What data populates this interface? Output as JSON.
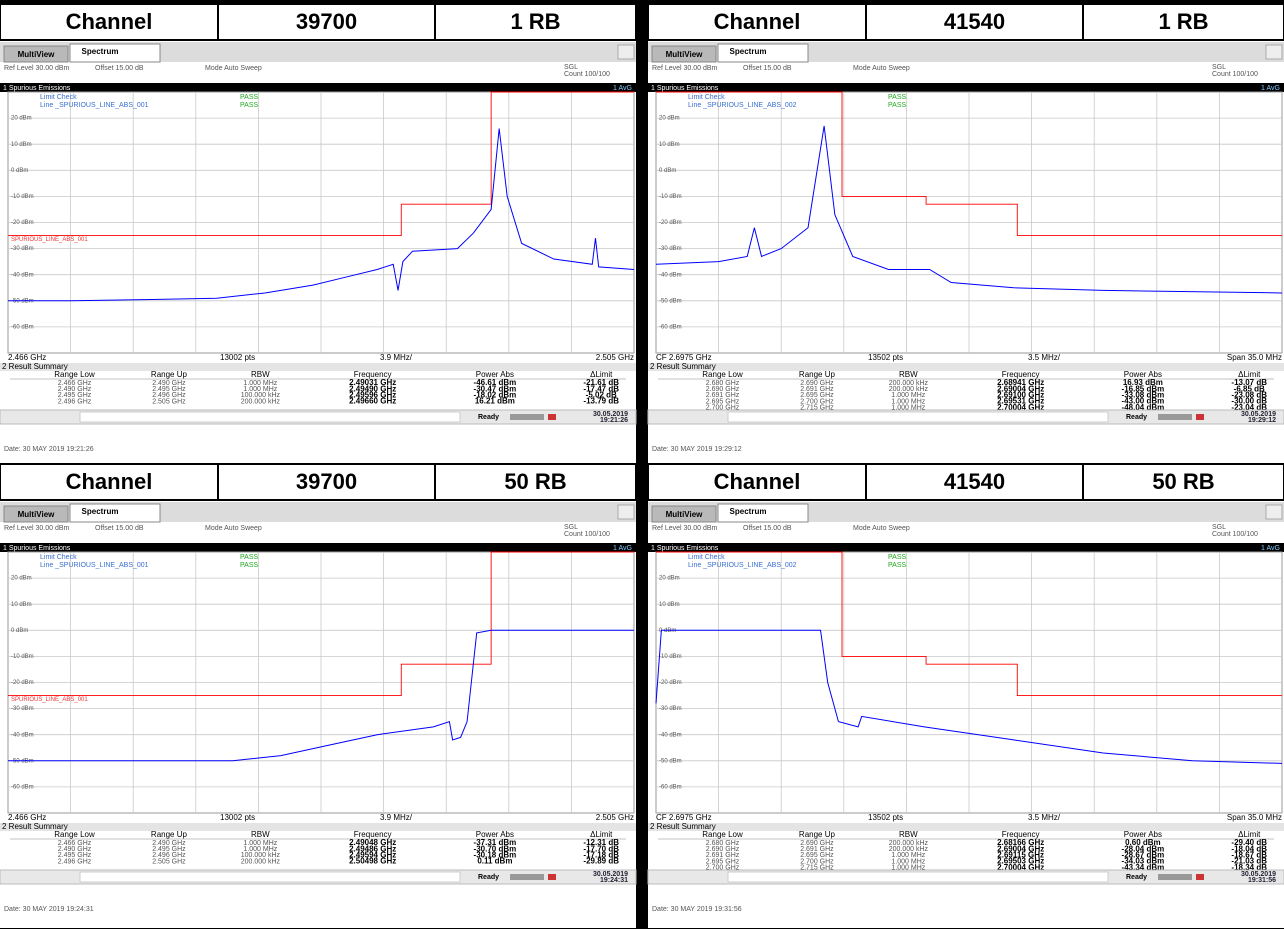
{
  "panels": [
    {
      "header": {
        "label": "Channel",
        "channel": "39700",
        "rb": "1 RB"
      },
      "tabs": [
        "MultiView",
        "Spectrum"
      ],
      "ref_level": "Ref Level 30.00 dBm",
      "offset": "Offset 15.00 dB",
      "mode": "Mode Auto Sweep",
      "sgl": "SGL",
      "count": "Count 100/100",
      "window_title": "1 Spurious Emissions",
      "trace_label": "1 AvG",
      "limit_check": "Limit Check",
      "limit_result": "PASS",
      "line_name": "Line _SPURIOUS_LINE_ABS_001",
      "line_result": "PASS",
      "limit_line_label": "SPURIOUS_LINE_ABS_001",
      "plot": {
        "xlim": [
          2.466,
          2.505
        ],
        "ylim": [
          -70,
          30
        ],
        "yticks": [
          {
            "value": 20,
            "label": "20 dBm"
          },
          {
            "value": 10,
            "label": "10 dBm"
          },
          {
            "value": 0,
            "label": "0 dBm"
          },
          {
            "value": -10,
            "label": "-10 dBm"
          },
          {
            "value": -20,
            "label": "-20 dBm"
          },
          {
            "value": -30,
            "label": "-30 dBm"
          },
          {
            "value": -40,
            "label": "-40 dBm"
          },
          {
            "value": -50,
            "label": "-50 dBm"
          },
          {
            "value": -60,
            "label": "-60 dBm"
          }
        ],
        "trace": {
          "color": "#0000ff",
          "x": [
            2.466,
            2.47,
            2.475,
            2.479,
            2.482,
            2.485,
            2.487,
            2.489,
            2.49,
            2.4903,
            2.4906,
            2.4912,
            2.494,
            2.495,
            2.4961,
            2.4966,
            2.4971,
            2.498,
            2.5,
            2.5024,
            2.5026,
            2.5028,
            2.505
          ],
          "values": [
            -50,
            -50,
            -49.5,
            -49,
            -47,
            -44,
            -41,
            -38,
            -36,
            -46,
            -35,
            -31,
            -30,
            -24,
            -15,
            16,
            -10,
            -28,
            -34,
            -36,
            -26,
            -37,
            -38
          ]
        },
        "limit": {
          "color": "#ff0000",
          "x": [
            2.466,
            2.4905,
            2.4905,
            2.4961,
            2.4961,
            2.505
          ],
          "values": [
            -25,
            -25,
            -13,
            -13,
            30,
            30
          ]
        }
      },
      "x_left": "2.466 GHz",
      "points": "13002 pts",
      "per_div": "3.9 MHz/",
      "x_right": "2.505 GHz",
      "summary_title": "2 Result Summary",
      "columns": [
        "Range Low",
        "Range Up",
        "RBW",
        "Frequency",
        "Power Abs",
        "ΔLimit"
      ],
      "rows": [
        [
          "2.466 GHz",
          "2.490 GHz",
          "1.000 MHz",
          "2.49031 GHz",
          "-46.61 dBm",
          "-21.61 dB"
        ],
        [
          "2.490 GHz",
          "2.495 GHz",
          "1.000 MHz",
          "2.49490 GHz",
          "-30.47 dBm",
          "-17.47 dB"
        ],
        [
          "2.495 GHz",
          "2.496 GHz",
          "100.000 kHz",
          "2.49596 GHz",
          "-18.02 dBm",
          "-5.02 dB"
        ],
        [
          "2.496 GHz",
          "2.505 GHz",
          "200.000 kHz",
          "2.49660 GHz",
          "16.21 dBm",
          "-13.79 dB"
        ]
      ],
      "status": "Ready",
      "timestamp": [
        "30.05.2019",
        "19:21:26"
      ],
      "date": "Date: 30 MAY 2019 19:21:26"
    },
    {
      "header": {
        "label": "Channel",
        "channel": "41540",
        "rb": "1 RB"
      },
      "tabs": [
        "MultiView",
        "Spectrum"
      ],
      "ref_level": "Ref Level 30.00 dBm",
      "offset": "Offset 15.00 dB",
      "mode": "Mode Auto Sweep",
      "sgl": "SGL",
      "count": "Count 100/100",
      "window_title": "1 Spurious Emissions",
      "trace_label": "1 AvG",
      "limit_check": "Limit Check",
      "limit_result": "PASS",
      "line_name": "Line _SPURIOUS_LINE_ABS_002",
      "line_result": "PASS",
      "plot": {
        "xlim": [
          2.68,
          2.715
        ],
        "ylim": [
          -70,
          30
        ],
        "yticks": [
          {
            "value": 20,
            "label": "20 dBm"
          },
          {
            "value": 10,
            "label": "10 dBm"
          },
          {
            "value": 0,
            "label": "0 dBm"
          },
          {
            "value": -10,
            "label": "-10 dBm"
          },
          {
            "value": -20,
            "label": "-20 dBm"
          },
          {
            "value": -30,
            "label": "-30 dBm"
          },
          {
            "value": -40,
            "label": "-40 dBm"
          },
          {
            "value": -50,
            "label": "-50 dBm"
          },
          {
            "value": -60,
            "label": "-60 dBm"
          }
        ],
        "trace": {
          "color": "#0000ff",
          "x": [
            2.68,
            2.6835,
            2.6851,
            2.6855,
            2.6859,
            2.687,
            2.6885,
            2.6894,
            2.69,
            2.6905,
            2.691,
            2.693,
            2.6953,
            2.6965,
            2.7,
            2.705,
            2.715
          ],
          "values": [
            -36,
            -35,
            -33,
            -22,
            -33,
            -30,
            -22,
            17,
            -17,
            -25,
            -33,
            -38,
            -38,
            -43,
            -45,
            -46,
            -47
          ]
        },
        "limit": {
          "color": "#ff0000",
          "x": [
            2.68,
            2.6904,
            2.6904,
            2.6951,
            2.6951,
            2.7002,
            2.7002,
            2.715
          ],
          "values": [
            30,
            30,
            -10,
            -10,
            -13,
            -13,
            -25,
            -25
          ]
        }
      },
      "x_left": "CF 2.6975 GHz",
      "points": "13502 pts",
      "per_div": "3.5 MHz/",
      "x_right": "Span 35.0 MHz",
      "summary_title": "2 Result Summary",
      "columns": [
        "Range Low",
        "Range Up",
        "RBW",
        "Frequency",
        "Power Abs",
        "ΔLimit"
      ],
      "rows": [
        [
          "2.680 GHz",
          "2.690 GHz",
          "200.000 kHz",
          "2.68941 GHz",
          "16.93 dBm",
          "-13.07 dB"
        ],
        [
          "2.690 GHz",
          "2.691 GHz",
          "200.000 kHz",
          "2.69004 GHz",
          "-16.85 dBm",
          "-6.85 dB"
        ],
        [
          "2.691 GHz",
          "2.695 GHz",
          "1.000 MHz",
          "2.69100 GHz",
          "-33.08 dBm",
          "-23.08 dB"
        ],
        [
          "2.695 GHz",
          "2.700 GHz",
          "1.000 MHz",
          "2.69531 GHz",
          "-43.00 dBm",
          "-30.00 dB"
        ],
        [
          "2.700 GHz",
          "2.715 GHz",
          "1.000 MHz",
          "2.70004 GHz",
          "-48.04 dBm",
          "-23.04 dB"
        ]
      ],
      "status": "Ready",
      "timestamp": [
        "30.05.2019",
        "19:29:12"
      ],
      "date": "Date: 30 MAY 2019 19:29:12"
    },
    {
      "header": {
        "label": "Channel",
        "channel": "39700",
        "rb": "50 RB"
      },
      "tabs": [
        "MultiView",
        "Spectrum"
      ],
      "ref_level": "Ref Level 30.00 dBm",
      "offset": "Offset 15.00 dB",
      "mode": "Mode Auto Sweep",
      "sgl": "SGL",
      "count": "Count 100/100",
      "window_title": "1 Spurious Emissions",
      "trace_label": "1 AvG",
      "limit_check": "Limit Check",
      "limit_result": "PASS",
      "line_name": "Line _SPURIOUS_LINE_ABS_001",
      "line_result": "PASS",
      "limit_line_label": "SPURIOUS_LINE_ABS_001",
      "plot": {
        "xlim": [
          2.466,
          2.505
        ],
        "ylim": [
          -70,
          30
        ],
        "yticks": [
          {
            "value": 20,
            "label": "20 dBm"
          },
          {
            "value": 10,
            "label": "10 dBm"
          },
          {
            "value": 0,
            "label": "0 dBm"
          },
          {
            "value": -10,
            "label": "-10 dBm"
          },
          {
            "value": -20,
            "label": "-20 dBm"
          },
          {
            "value": -30,
            "label": "-30 dBm"
          },
          {
            "value": -40,
            "label": "-40 dBm"
          },
          {
            "value": -50,
            "label": "-50 dBm"
          },
          {
            "value": -60,
            "label": "-60 dBm"
          }
        ],
        "trace": {
          "color": "#0000ff",
          "x": [
            2.466,
            2.475,
            2.48,
            2.483,
            2.486,
            2.489,
            2.4925,
            2.4935,
            2.4937,
            2.4942,
            2.4946,
            2.4952,
            2.4961,
            2.5,
            2.505
          ],
          "values": [
            -50,
            -50,
            -50,
            -48,
            -44,
            -40,
            -37,
            -35,
            -42,
            -41,
            -35,
            -1,
            0,
            0,
            0
          ]
        },
        "limit": {
          "color": "#ff0000",
          "x": [
            2.466,
            2.4905,
            2.4905,
            2.4961,
            2.4961,
            2.505
          ],
          "values": [
            -25,
            -25,
            -13,
            -13,
            30,
            30
          ]
        }
      },
      "x_left": "2.466 GHz",
      "points": "13002 pts",
      "per_div": "3.9 MHz/",
      "x_right": "2.505 GHz",
      "summary_title": "2 Result Summary",
      "columns": [
        "Range Low",
        "Range Up",
        "RBW",
        "Frequency",
        "Power Abs",
        "ΔLimit"
      ],
      "rows": [
        [
          "2.466 GHz",
          "2.490 GHz",
          "1.000 MHz",
          "2.49048 GHz",
          "-37.31 dBm",
          "-12.31 dB"
        ],
        [
          "2.490 GHz",
          "2.495 GHz",
          "1.000 MHz",
          "2.49486 GHz",
          "-30.70 dBm",
          "-17.70 dB"
        ],
        [
          "2.495 GHz",
          "2.496 GHz",
          "100.000 kHz",
          "2.49594 GHz",
          "-30.18 dBm",
          "-17.18 dB"
        ],
        [
          "2.496 GHz",
          "2.505 GHz",
          "200.000 kHz",
          "2.50498 GHz",
          "0.11 dBm",
          "-29.89 dB"
        ]
      ],
      "status": "Ready",
      "timestamp": [
        "30.05.2019",
        "19:24:31"
      ],
      "date": "Date: 30 MAY 2019 19:24:31"
    },
    {
      "header": {
        "label": "Channel",
        "channel": "41540",
        "rb": "50 RB"
      },
      "tabs": [
        "MultiView",
        "Spectrum"
      ],
      "ref_level": "Ref Level 30.00 dBm",
      "offset": "Offset 15.00 dB",
      "mode": "Mode Auto Sweep",
      "sgl": "SGL",
      "count": "Count 100/100",
      "window_title": "1 Spurious Emissions",
      "trace_label": "1 AvG",
      "limit_check": "Limit Check",
      "limit_result": "PASS",
      "line_name": "Line _SPURIOUS_LINE_ABS_002",
      "line_result": "PASS",
      "plot": {
        "xlim": [
          2.68,
          2.715
        ],
        "ylim": [
          -70,
          30
        ],
        "yticks": [
          {
            "value": 20,
            "label": "20 dBm"
          },
          {
            "value": 10,
            "label": "10 dBm"
          },
          {
            "value": 0,
            "label": "0 dBm"
          },
          {
            "value": -10,
            "label": "-10 dBm"
          },
          {
            "value": -20,
            "label": "-20 dBm"
          },
          {
            "value": -30,
            "label": "-30 dBm"
          },
          {
            "value": -40,
            "label": "-40 dBm"
          },
          {
            "value": -50,
            "label": "-50 dBm"
          },
          {
            "value": -60,
            "label": "-60 dBm"
          }
        ],
        "trace": {
          "color": "#0000ff",
          "x": [
            2.68,
            2.6803,
            2.685,
            2.6892,
            2.6896,
            2.6902,
            2.6913,
            2.6915,
            2.695,
            2.7,
            2.705,
            2.71,
            2.715
          ],
          "values": [
            -28,
            0,
            0,
            0,
            -20,
            -35,
            -37,
            -33,
            -37,
            -42,
            -47,
            -50,
            -51
          ]
        },
        "limit": {
          "color": "#ff0000",
          "x": [
            2.68,
            2.6904,
            2.6904,
            2.6951,
            2.6951,
            2.7002,
            2.7002,
            2.715
          ],
          "values": [
            30,
            30,
            -10,
            -10,
            -13,
            -13,
            -25,
            -25
          ]
        }
      },
      "x_left": "CF 2.6975 GHz",
      "points": "13502 pts",
      "per_div": "3.5 MHz/",
      "x_right": "Span 35.0 MHz",
      "summary_title": "2 Result Summary",
      "columns": [
        "Range Low",
        "Range Up",
        "RBW",
        "Frequency",
        "Power Abs",
        "ΔLimit"
      ],
      "rows": [
        [
          "2.680 GHz",
          "2.690 GHz",
          "200.000 kHz",
          "2.68166 GHz",
          "0.60 dBm",
          "-29.40 dB"
        ],
        [
          "2.690 GHz",
          "2.691 GHz",
          "200.000 kHz",
          "2.69004 GHz",
          "-28.04 dBm",
          "-18.04 dB"
        ],
        [
          "2.691 GHz",
          "2.695 GHz",
          "1.000 MHz",
          "2.69115 GHz",
          "-28.67 dBm",
          "-18.67 dB"
        ],
        [
          "2.695 GHz",
          "2.700 GHz",
          "1.000 MHz",
          "2.69503 GHz",
          "-34.03 dBm",
          "-21.03 dB"
        ],
        [
          "2.700 GHz",
          "2.715 GHz",
          "1.000 MHz",
          "2.70004 GHz",
          "-43.34 dBm",
          "-18.34 dB"
        ]
      ],
      "status": "Ready",
      "timestamp": [
        "30.05.2019",
        "19:31:56"
      ],
      "date": "Date: 30 MAY 2019 19:31:56"
    }
  ]
}
